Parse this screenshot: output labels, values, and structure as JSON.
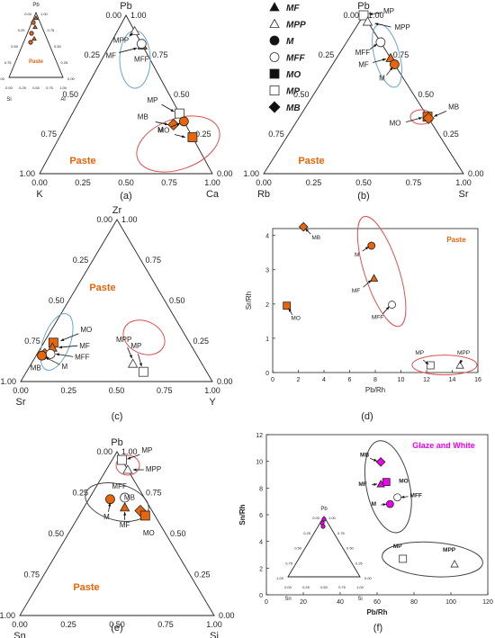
{
  "colors": {
    "orange": "#e8650a",
    "magenta": "#f000f0",
    "red": "#e05050",
    "blue": "#6aa6c8",
    "grey": "#555555",
    "paste": "#e8650a"
  },
  "legend": [
    {
      "label": "MF",
      "marker": "triangle-filled"
    },
    {
      "label": "MPP",
      "marker": "triangle-open"
    },
    {
      "label": "M",
      "marker": "circle-filled"
    },
    {
      "label": "MFF",
      "marker": "circle-open"
    },
    {
      "label": "MO",
      "marker": "square-filled"
    },
    {
      "label": "MP",
      "marker": "square-open"
    },
    {
      "label": "MB",
      "marker": "diamond-filled"
    }
  ],
  "chart_data": [
    {
      "id": "a",
      "type": "ternary",
      "caption": "(a)",
      "axes": {
        "top": "Pb",
        "left": "K",
        "right": "Ca"
      },
      "left_ticks": [
        "1.00",
        "0.75",
        "0.50",
        "0.25",
        "0.00"
      ],
      "right_ticks": [
        "0.00",
        "0.25",
        "0.50",
        "0.75",
        "1.00"
      ],
      "bottom_ticks": [
        "0.00",
        "0.25",
        "0.50",
        "0.75",
        "1.00"
      ],
      "annotation": "Paste",
      "points": [
        {
          "name": "MPP",
          "marker": "triangle-open",
          "ca": 0.1,
          "k": 0.0,
          "pb": 0.9,
          "fill": "orange"
        },
        {
          "name": "MF",
          "marker": "triangle-filled",
          "ca": 0.19,
          "k": 0.0,
          "pb": 0.81,
          "fill": "orange"
        },
        {
          "name": "MFF",
          "marker": "circle-open",
          "ca": 0.18,
          "k": 0.0,
          "pb": 0.82,
          "fill": "orange"
        },
        {
          "name": "MP",
          "marker": "square-open",
          "ca": 0.62,
          "k": 0.0,
          "pb": 0.38,
          "fill": "orange"
        },
        {
          "name": "MB",
          "marker": "diamond-filled",
          "ca": 0.62,
          "k": 0.07,
          "pb": 0.31,
          "fill": "orange"
        },
        {
          "name": "M",
          "marker": "circle-filled",
          "ca": 0.67,
          "k": 0.0,
          "pb": 0.33,
          "fill": "orange"
        },
        {
          "name": "MO",
          "marker": "square-filled",
          "ca": 0.77,
          "k": 0.0,
          "pb": 0.23,
          "fill": "orange"
        }
      ],
      "inset": {
        "axes": {
          "top": "Pb",
          "left": "Si",
          "right": "Al"
        },
        "annotation": "Paste",
        "left_ticks": [
          "1.00",
          "0.75",
          "0.50",
          "0.25",
          "0.00"
        ],
        "right_ticks": [
          "0.00",
          "0.25",
          "0.50",
          "0.75",
          "1.00"
        ],
        "bottom_ticks": [
          "0.00",
          "0.25",
          "0.50",
          "0.75",
          "1.00"
        ]
      }
    },
    {
      "id": "b",
      "type": "ternary",
      "caption": "(b)",
      "axes": {
        "top": "Pb",
        "left": "Rb",
        "right": "Sr"
      },
      "left_ticks": [
        "1.00",
        "0.75",
        "0.50",
        "0.25",
        "0.00"
      ],
      "right_ticks": [
        "0.00",
        "0.25",
        "0.50",
        "0.75",
        "1.00"
      ],
      "bottom_ticks": [
        "0.00",
        "0.25",
        "0.50",
        "0.75",
        "1.00"
      ],
      "annotation": "Paste",
      "points": [
        {
          "name": "MP",
          "marker": "square-open",
          "sr": 0.0,
          "rb": 0.0,
          "pb": 1.0,
          "fill": "orange"
        },
        {
          "name": "MPP",
          "marker": "triangle-open",
          "sr": 0.04,
          "rb": 0.0,
          "pb": 0.96,
          "fill": "orange"
        },
        {
          "name": "MFF",
          "marker": "circle-open",
          "sr": 0.17,
          "rb": 0.0,
          "pb": 0.83,
          "fill": "orange"
        },
        {
          "name": "MF",
          "marker": "triangle-filled",
          "sr": 0.27,
          "rb": 0.0,
          "pb": 0.73,
          "fill": "orange"
        },
        {
          "name": "M",
          "marker": "circle-filled",
          "sr": 0.31,
          "rb": 0.0,
          "pb": 0.69,
          "fill": "orange"
        },
        {
          "name": "MO",
          "marker": "square-filled",
          "sr": 0.64,
          "rb": 0.0,
          "pb": 0.36,
          "fill": "orange"
        },
        {
          "name": "MB",
          "marker": "diamond-filled",
          "sr": 0.65,
          "rb": 0.0,
          "pb": 0.35,
          "fill": "orange"
        }
      ]
    },
    {
      "id": "c",
      "type": "ternary",
      "caption": "(c)",
      "axes": {
        "top": "Zr",
        "left": "Sr",
        "right": "Y"
      },
      "left_ticks": [
        "1.00",
        "0.75",
        "0.50",
        "0.25",
        "0.00"
      ],
      "right_ticks": [
        "0.00",
        "0.25",
        "0.50",
        "0.75",
        "1.00"
      ],
      "bottom_ticks": [
        "0.00",
        "0.25",
        "0.50",
        "0.75",
        "1.00"
      ],
      "annotation": "Paste",
      "points": [
        {
          "name": "MO",
          "marker": "square-filled",
          "y": 0.05,
          "sr": 0.71,
          "zr": 0.24,
          "fill": "orange"
        },
        {
          "name": "MF",
          "marker": "triangle-filled",
          "y": 0.06,
          "sr": 0.73,
          "zr": 0.21,
          "fill": "orange"
        },
        {
          "name": "MB",
          "marker": "diamond-filled",
          "y": 0.04,
          "sr": 0.79,
          "zr": 0.17,
          "fill": "orange"
        },
        {
          "name": "MFF",
          "marker": "circle-open",
          "y": 0.07,
          "sr": 0.76,
          "zr": 0.17,
          "fill": "orange"
        },
        {
          "name": "M",
          "marker": "circle-filled",
          "y": 0.03,
          "sr": 0.81,
          "zr": 0.16,
          "fill": "orange"
        },
        {
          "name": "MPP",
          "marker": "triangle-open",
          "y": 0.53,
          "sr": 0.36,
          "zr": 0.11,
          "fill": "orange"
        },
        {
          "name": "MP",
          "marker": "square-open",
          "y": 0.61,
          "sr": 0.33,
          "zr": 0.06,
          "fill": "orange"
        }
      ]
    },
    {
      "id": "d",
      "type": "scatter",
      "caption": "(d)",
      "xlabel": "Pb/Rh",
      "ylabel": "Sr/Rh",
      "annotation": "Paste",
      "xlim": [
        0,
        16
      ],
      "ylim": [
        0,
        4.2
      ],
      "xticks": [
        0,
        2,
        4,
        6,
        8,
        10,
        12,
        14,
        16
      ],
      "yticks": [
        0,
        1,
        2,
        3,
        4
      ],
      "points": [
        {
          "name": "MB",
          "marker": "diamond-filled",
          "x": 2.4,
          "y": 4.25,
          "fill": "orange"
        },
        {
          "name": "M",
          "marker": "circle-filled",
          "x": 7.7,
          "y": 3.7,
          "fill": "orange"
        },
        {
          "name": "MF",
          "marker": "triangle-filled",
          "x": 7.9,
          "y": 2.75,
          "fill": "orange"
        },
        {
          "name": "MFF",
          "marker": "circle-open",
          "x": 9.3,
          "y": 1.98,
          "fill": "orange"
        },
        {
          "name": "MO",
          "marker": "square-filled",
          "x": 1.1,
          "y": 1.95,
          "fill": "orange"
        },
        {
          "name": "MP",
          "marker": "square-open",
          "x": 12.3,
          "y": 0.21,
          "fill": "orange"
        },
        {
          "name": "MPP",
          "marker": "triangle-open",
          "x": 14.6,
          "y": 0.21,
          "fill": "orange"
        }
      ]
    },
    {
      "id": "e",
      "type": "ternary",
      "caption": "(e)",
      "axes": {
        "top": "Pb",
        "left": "Sn",
        "right": "Si"
      },
      "left_ticks": [
        "1.00",
        "0.75",
        "0.50",
        "0.25",
        "0.00"
      ],
      "right_ticks": [
        "0.00",
        "0.25",
        "0.50",
        "0.75",
        "1.00"
      ],
      "bottom_ticks": [
        "0.00",
        "0.25",
        "0.50",
        "0.75",
        "1.00"
      ],
      "annotation": "Paste",
      "points": [
        {
          "name": "MP",
          "marker": "square-open",
          "si": 0.05,
          "sn": 0.0,
          "pb": 0.95,
          "fill": "orange"
        },
        {
          "name": "MPP",
          "marker": "triangle-open",
          "si": 0.11,
          "sn": 0.0,
          "pb": 0.89,
          "fill": "orange"
        },
        {
          "name": "M",
          "marker": "circle-filled",
          "si": 0.11,
          "sn": 0.18,
          "pb": 0.71,
          "fill": "orange"
        },
        {
          "name": "MFF",
          "marker": "circle-open",
          "si": 0.18,
          "sn": 0.1,
          "pb": 0.72,
          "fill": "orange"
        },
        {
          "name": "MF",
          "marker": "triangle-filled",
          "si": 0.21,
          "sn": 0.13,
          "pb": 0.66,
          "fill": "orange"
        },
        {
          "name": "MB",
          "marker": "diamond-filled",
          "si": 0.3,
          "sn": 0.06,
          "pb": 0.64,
          "fill": "orange"
        },
        {
          "name": "MO",
          "marker": "square-filled",
          "si": 0.34,
          "sn": 0.05,
          "pb": 0.61,
          "fill": "orange"
        }
      ]
    },
    {
      "id": "f",
      "type": "scatter",
      "caption": "(f)",
      "xlabel": "Pb/Rh",
      "ylabel": "Sn/Rh",
      "annotation": "Glaze and White",
      "xlim": [
        0,
        120
      ],
      "ylim": [
        0,
        12
      ],
      "xticks": [
        0,
        20,
        40,
        60,
        80,
        100,
        120
      ],
      "yticks": [
        0,
        2,
        4,
        6,
        8,
        10,
        12
      ],
      "points": [
        {
          "name": "MB",
          "marker": "diamond-filled",
          "x": 62,
          "y": 9.95,
          "fill": "magenta"
        },
        {
          "name": "MO",
          "marker": "square-filled",
          "x": 65,
          "y": 8.45,
          "fill": "magenta"
        },
        {
          "name": "MF",
          "marker": "triangle-filled",
          "x": 62,
          "y": 8.3,
          "fill": "magenta"
        },
        {
          "name": "MFF",
          "marker": "circle-open",
          "x": 71,
          "y": 7.3,
          "fill": "magenta"
        },
        {
          "name": "M",
          "marker": "circle-filled",
          "x": 67,
          "y": 6.8,
          "fill": "magenta"
        },
        {
          "name": "MP",
          "marker": "square-open",
          "x": 74,
          "y": 2.7,
          "fill": "magenta"
        },
        {
          "name": "MPP",
          "marker": "triangle-open",
          "x": 102,
          "y": 2.3,
          "fill": "magenta"
        }
      ],
      "inset": {
        "axes": {
          "top": "Pb",
          "left": "Sn",
          "right": "Si"
        },
        "left_ticks": [
          "1.00",
          "0.75",
          "0.50",
          "0.25",
          "0.00"
        ],
        "right_ticks": [
          "0.00",
          "0.25",
          "0.50",
          "0.75",
          "1.00"
        ],
        "bottom_ticks": [
          "0.00",
          "0.25",
          "0.50",
          "0.75",
          "1.00"
        ]
      }
    }
  ]
}
